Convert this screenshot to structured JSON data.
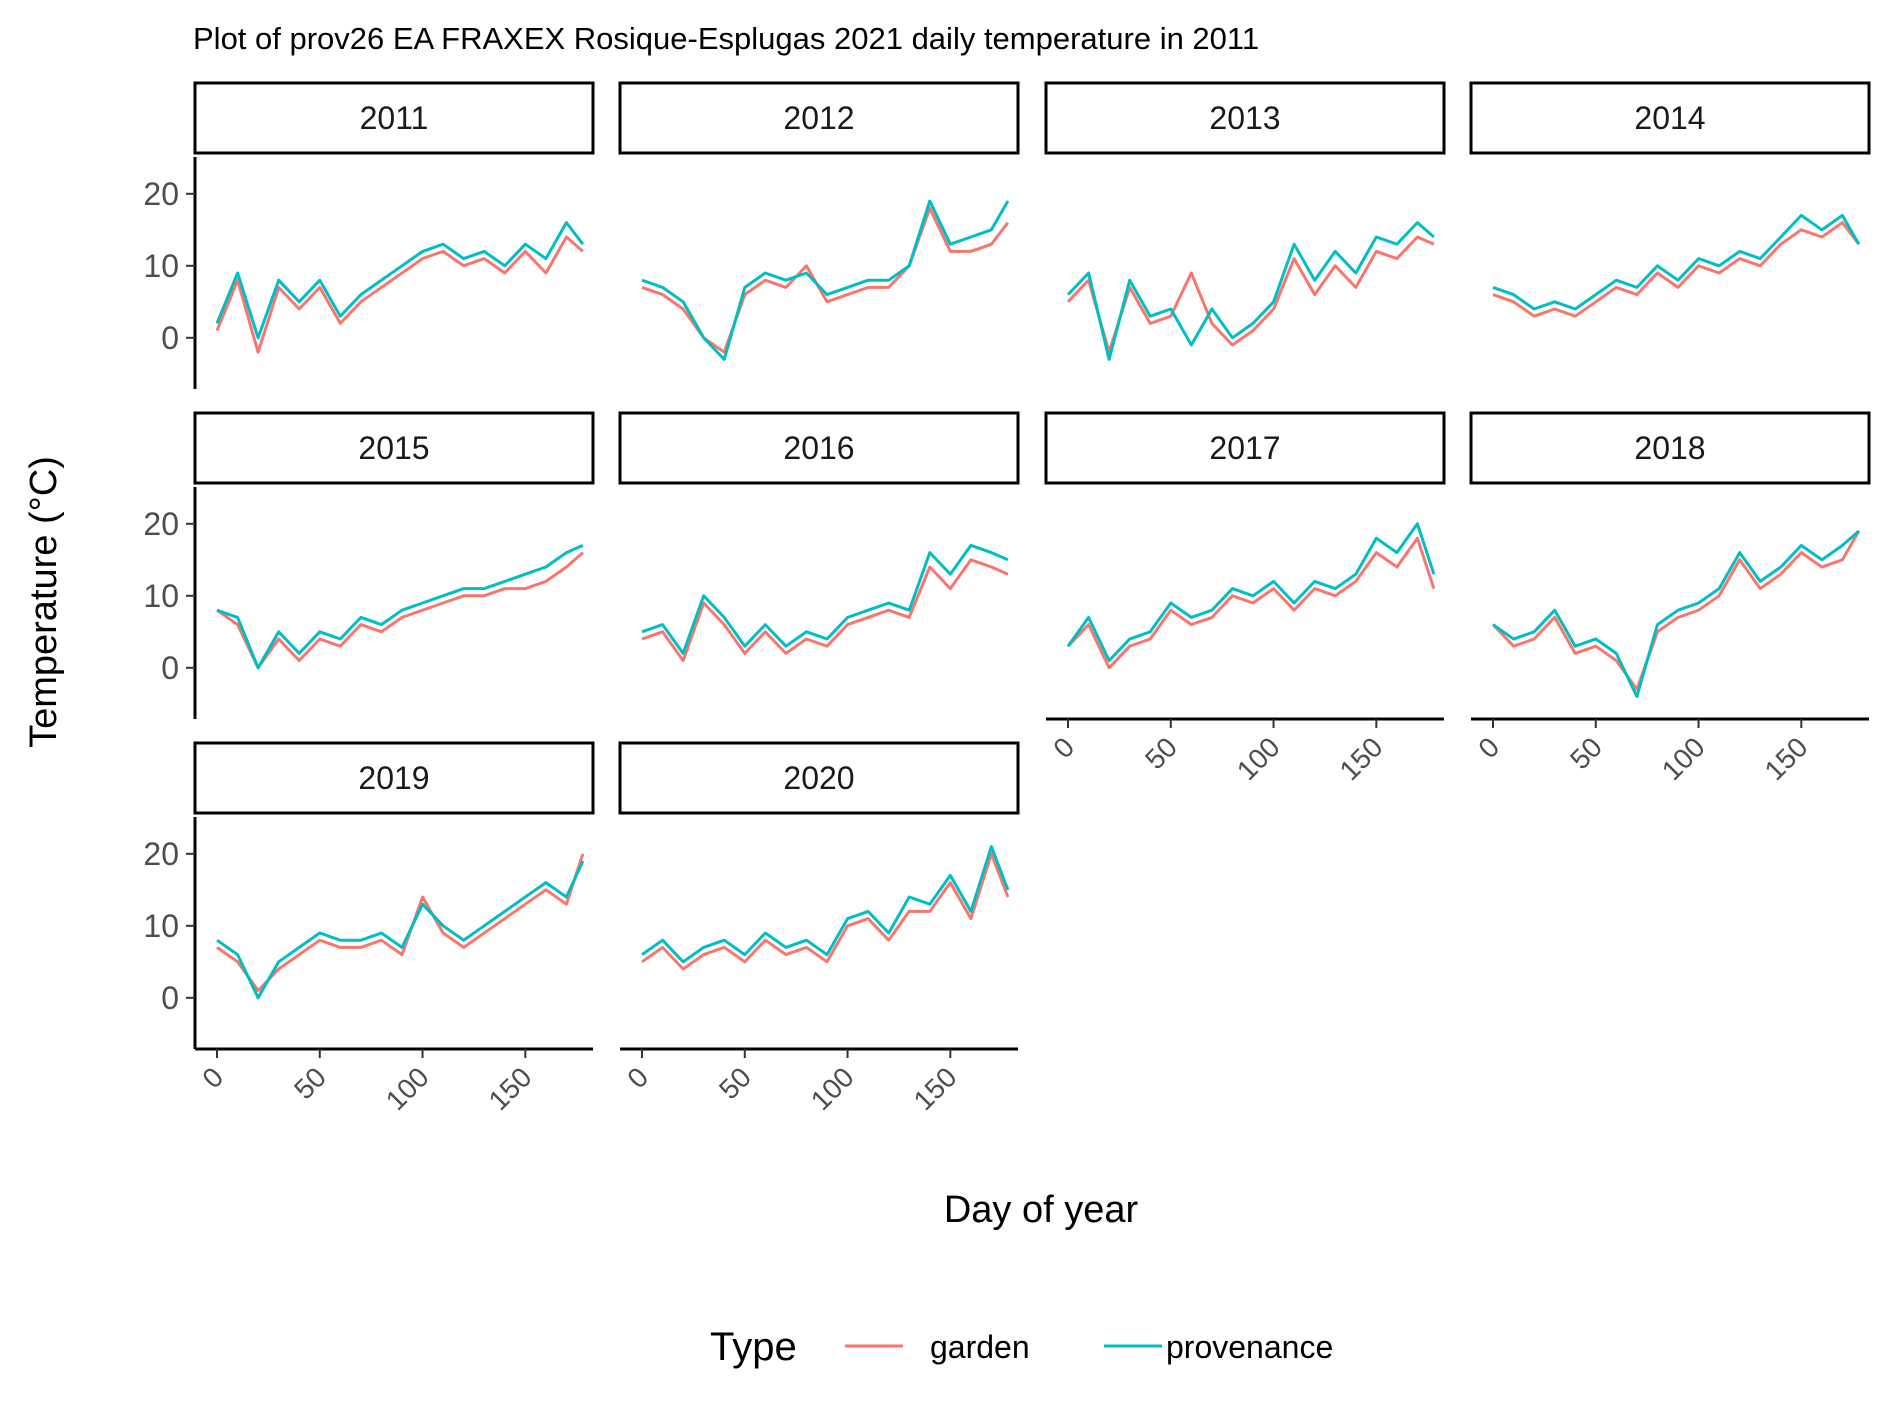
{
  "chart_data": {
    "type": "line",
    "title": "Plot of prov26 EA FRAXEX Rosique-Esplugas 2021 daily temperature in 2011",
    "xlabel": "Day of year",
    "ylabel": "Temperature (°C)",
    "xlim": [
      0,
      180
    ],
    "ylim": [
      -6,
      24
    ],
    "x_ticks": [
      "0",
      "50",
      "100",
      "150"
    ],
    "y_ticks": [
      "0",
      "10",
      "20"
    ],
    "grid": false,
    "legend": {
      "title": "Type",
      "position": "bottom",
      "entries": [
        "garden",
        "provenance"
      ]
    },
    "series_colors": {
      "garden": "#F8766D",
      "provenance": "#00BFC4"
    },
    "facet_labels": [
      "2011",
      "2012",
      "2013",
      "2014",
      "2015",
      "2016",
      "2017",
      "2018",
      "2019",
      "2020"
    ],
    "facets": [
      {
        "label": "2011",
        "series": [
          {
            "name": "provenance",
            "x": [
              0,
              10,
              20,
              30,
              40,
              50,
              60,
              70,
              80,
              90,
              100,
              110,
              120,
              130,
              140,
              150,
              160,
              170,
              178
            ],
            "values": [
              2,
              9,
              0,
              8,
              5,
              8,
              3,
              6,
              8,
              10,
              12,
              13,
              11,
              12,
              10,
              13,
              11,
              16,
              13
            ]
          },
          {
            "name": "garden",
            "x": [
              0,
              10,
              20,
              30,
              40,
              50,
              60,
              70,
              80,
              90,
              100,
              110,
              120,
              130,
              140,
              150,
              160,
              170,
              178
            ],
            "values": [
              1,
              8,
              -2,
              7,
              4,
              7,
              2,
              5,
              7,
              9,
              11,
              12,
              10,
              11,
              9,
              12,
              9,
              14,
              12
            ]
          }
        ]
      },
      {
        "label": "2012",
        "series": [
          {
            "name": "provenance",
            "x": [
              0,
              10,
              20,
              30,
              40,
              50,
              60,
              70,
              80,
              90,
              100,
              110,
              120,
              130,
              140,
              150,
              160,
              170,
              178
            ],
            "values": [
              8,
              7,
              5,
              0,
              -3,
              7,
              9,
              8,
              9,
              6,
              7,
              8,
              8,
              10,
              19,
              13,
              14,
              15,
              19
            ]
          },
          {
            "name": "garden",
            "x": [
              0,
              10,
              20,
              30,
              40,
              50,
              60,
              70,
              80,
              90,
              100,
              110,
              120,
              130,
              140,
              150,
              160,
              170,
              178
            ],
            "values": [
              7,
              6,
              4,
              0,
              -2,
              6,
              8,
              7,
              10,
              5,
              6,
              7,
              7,
              10,
              18,
              12,
              12,
              13,
              16
            ]
          }
        ]
      },
      {
        "label": "2013",
        "series": [
          {
            "name": "provenance",
            "x": [
              0,
              10,
              20,
              30,
              40,
              50,
              60,
              70,
              80,
              90,
              100,
              110,
              120,
              130,
              140,
              150,
              160,
              170,
              178
            ],
            "values": [
              6,
              9,
              -3,
              8,
              3,
              4,
              -1,
              4,
              0,
              2,
              5,
              13,
              8,
              12,
              9,
              14,
              13,
              16,
              14
            ]
          },
          {
            "name": "garden",
            "x": [
              0,
              10,
              20,
              30,
              40,
              50,
              60,
              70,
              80,
              90,
              100,
              110,
              120,
              130,
              140,
              150,
              160,
              170,
              178
            ],
            "values": [
              5,
              8,
              -2,
              7,
              2,
              3,
              9,
              2,
              -1,
              1,
              4,
              11,
              6,
              10,
              7,
              12,
              11,
              14,
              13
            ]
          }
        ]
      },
      {
        "label": "2014",
        "series": [
          {
            "name": "provenance",
            "x": [
              0,
              10,
              20,
              30,
              40,
              50,
              60,
              70,
              80,
              90,
              100,
              110,
              120,
              130,
              140,
              150,
              160,
              170,
              178
            ],
            "values": [
              7,
              6,
              4,
              5,
              4,
              6,
              8,
              7,
              10,
              8,
              11,
              10,
              12,
              11,
              14,
              17,
              15,
              17,
              13
            ]
          },
          {
            "name": "garden",
            "x": [
              0,
              10,
              20,
              30,
              40,
              50,
              60,
              70,
              80,
              90,
              100,
              110,
              120,
              130,
              140,
              150,
              160,
              170,
              178
            ],
            "values": [
              6,
              5,
              3,
              4,
              3,
              5,
              7,
              6,
              9,
              7,
              10,
              9,
              11,
              10,
              13,
              15,
              14,
              16,
              13
            ]
          }
        ]
      },
      {
        "label": "2015",
        "series": [
          {
            "name": "provenance",
            "x": [
              0,
              10,
              20,
              30,
              40,
              50,
              60,
              70,
              80,
              90,
              100,
              110,
              120,
              130,
              140,
              150,
              160,
              170,
              178
            ],
            "values": [
              8,
              7,
              0,
              5,
              2,
              5,
              4,
              7,
              6,
              8,
              9,
              10,
              11,
              11,
              12,
              13,
              14,
              16,
              17
            ]
          },
          {
            "name": "garden",
            "x": [
              0,
              10,
              20,
              30,
              40,
              50,
              60,
              70,
              80,
              90,
              100,
              110,
              120,
              130,
              140,
              150,
              160,
              170,
              178
            ],
            "values": [
              8,
              6,
              0,
              4,
              1,
              4,
              3,
              6,
              5,
              7,
              8,
              9,
              10,
              10,
              11,
              11,
              12,
              14,
              16
            ]
          }
        ]
      },
      {
        "label": "2016",
        "series": [
          {
            "name": "provenance",
            "x": [
              0,
              10,
              20,
              30,
              40,
              50,
              60,
              70,
              80,
              90,
              100,
              110,
              120,
              130,
              140,
              150,
              160,
              170,
              178
            ],
            "values": [
              5,
              6,
              2,
              10,
              7,
              3,
              6,
              3,
              5,
              4,
              7,
              8,
              9,
              8,
              16,
              13,
              17,
              16,
              15
            ]
          },
          {
            "name": "garden",
            "x": [
              0,
              10,
              20,
              30,
              40,
              50,
              60,
              70,
              80,
              90,
              100,
              110,
              120,
              130,
              140,
              150,
              160,
              170,
              178
            ],
            "values": [
              4,
              5,
              1,
              9,
              6,
              2,
              5,
              2,
              4,
              3,
              6,
              7,
              8,
              7,
              14,
              11,
              15,
              14,
              13
            ]
          }
        ]
      },
      {
        "label": "2017",
        "series": [
          {
            "name": "provenance",
            "x": [
              0,
              10,
              20,
              30,
              40,
              50,
              60,
              70,
              80,
              90,
              100,
              110,
              120,
              130,
              140,
              150,
              160,
              170,
              178
            ],
            "values": [
              3,
              7,
              1,
              4,
              5,
              9,
              7,
              8,
              11,
              10,
              12,
              9,
              12,
              11,
              13,
              18,
              16,
              20,
              13
            ]
          },
          {
            "name": "garden",
            "x": [
              0,
              10,
              20,
              30,
              40,
              50,
              60,
              70,
              80,
              90,
              100,
              110,
              120,
              130,
              140,
              150,
              160,
              170,
              178
            ],
            "values": [
              3,
              6,
              0,
              3,
              4,
              8,
              6,
              7,
              10,
              9,
              11,
              8,
              11,
              10,
              12,
              16,
              14,
              18,
              11
            ]
          }
        ]
      },
      {
        "label": "2018",
        "series": [
          {
            "name": "provenance",
            "x": [
              0,
              10,
              20,
              30,
              40,
              50,
              60,
              70,
              80,
              90,
              100,
              110,
              120,
              130,
              140,
              150,
              160,
              170,
              178
            ],
            "values": [
              6,
              4,
              5,
              8,
              3,
              4,
              2,
              -4,
              6,
              8,
              9,
              11,
              16,
              12,
              14,
              17,
              15,
              17,
              19
            ]
          },
          {
            "name": "garden",
            "x": [
              0,
              10,
              20,
              30,
              40,
              50,
              60,
              70,
              80,
              90,
              100,
              110,
              120,
              130,
              140,
              150,
              160,
              170,
              178
            ],
            "values": [
              6,
              3,
              4,
              7,
              2,
              3,
              1,
              -3,
              5,
              7,
              8,
              10,
              15,
              11,
              13,
              16,
              14,
              15,
              19
            ]
          }
        ]
      },
      {
        "label": "2019",
        "series": [
          {
            "name": "provenance",
            "x": [
              0,
              10,
              20,
              30,
              40,
              50,
              60,
              70,
              80,
              90,
              100,
              110,
              120,
              130,
              140,
              150,
              160,
              170,
              178
            ],
            "values": [
              8,
              6,
              0,
              5,
              7,
              9,
              8,
              8,
              9,
              7,
              13,
              10,
              8,
              10,
              12,
              14,
              16,
              14,
              19
            ]
          },
          {
            "name": "garden",
            "x": [
              0,
              10,
              20,
              30,
              40,
              50,
              60,
              70,
              80,
              90,
              100,
              110,
              120,
              130,
              140,
              150,
              160,
              170,
              178
            ],
            "values": [
              7,
              5,
              1,
              4,
              6,
              8,
              7,
              7,
              8,
              6,
              14,
              9,
              7,
              9,
              11,
              13,
              15,
              13,
              20
            ]
          }
        ]
      },
      {
        "label": "2020",
        "series": [
          {
            "name": "provenance",
            "x": [
              0,
              10,
              20,
              30,
              40,
              50,
              60,
              70,
              80,
              90,
              100,
              110,
              120,
              130,
              140,
              150,
              160,
              170,
              178
            ],
            "values": [
              6,
              8,
              5,
              7,
              8,
              6,
              9,
              7,
              8,
              6,
              11,
              12,
              9,
              14,
              13,
              17,
              12,
              21,
              15
            ]
          },
          {
            "name": "garden",
            "x": [
              0,
              10,
              20,
              30,
              40,
              50,
              60,
              70,
              80,
              90,
              100,
              110,
              120,
              130,
              140,
              150,
              160,
              170,
              178
            ],
            "values": [
              5,
              7,
              4,
              6,
              7,
              5,
              8,
              6,
              7,
              5,
              10,
              11,
              8,
              12,
              12,
              16,
              11,
              20,
              14
            ]
          }
        ]
      }
    ]
  }
}
